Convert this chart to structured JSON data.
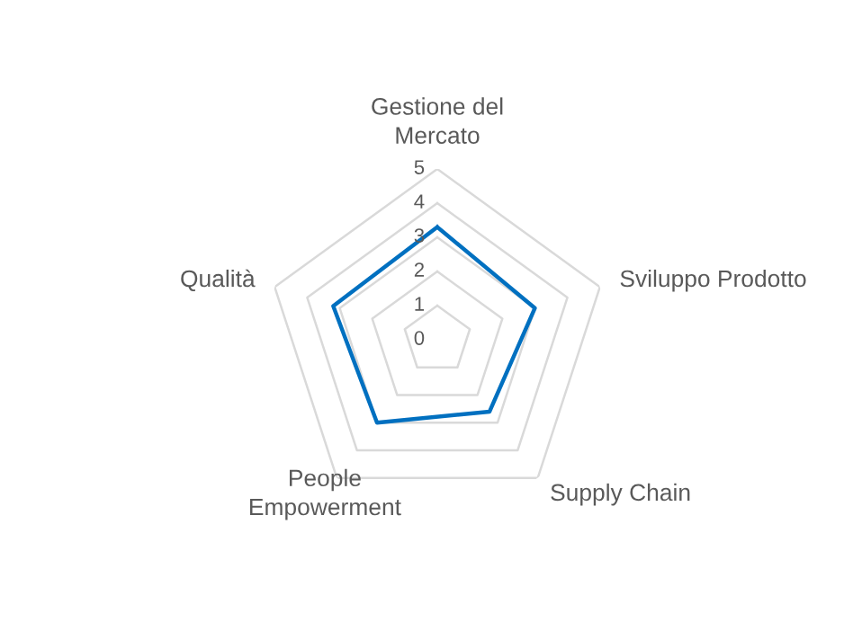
{
  "chart_data": {
    "type": "radar",
    "categories": [
      "Gestione del\nMercato",
      "Sviluppo Prodotto",
      "Supply Chain",
      "People\nEmpowerment",
      "Qualità"
    ],
    "series": [
      {
        "color": "#0070c0",
        "values": [
          3.3,
          3.0,
          2.6,
          3.0,
          3.2
        ]
      }
    ],
    "ylim": [
      0,
      5
    ],
    "yticks": [
      0,
      1,
      2,
      3,
      4,
      5
    ],
    "grid": true,
    "marker": "none",
    "line_style": "solid"
  }
}
